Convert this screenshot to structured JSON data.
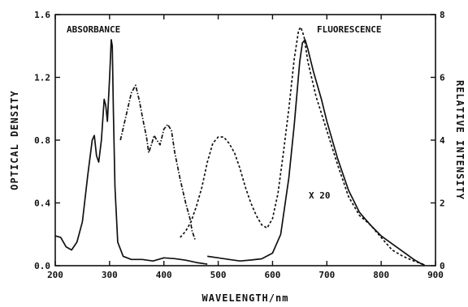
{
  "chart_data": {
    "type": "line",
    "xlabel": "WAVELENGTH/nm",
    "ylabel_left": "OPTICAL DENSITY",
    "ylabel_right": "RELATIVE INTENSITY",
    "xlim": [
      200,
      900
    ],
    "ylim_left": [
      0,
      1.6
    ],
    "ylim_right": [
      0,
      8
    ],
    "x_ticks": [
      "200",
      "300",
      "400",
      "500",
      "600",
      "700",
      "800",
      "900"
    ],
    "y_ticks_left": [
      "0.0",
      "0.4",
      "0.8",
      "1.2",
      "1.6"
    ],
    "y_ticks_right": [
      "0",
      "2",
      "4",
      "6",
      "8"
    ],
    "grid": false,
    "annotations": {
      "absorbance": "ABSORBANCE",
      "fluorescence": "FLUORESCENCE",
      "scale": "X 20"
    },
    "series": [
      {
        "axis": "left",
        "style": "solid",
        "points": [
          [
            200,
            0.19
          ],
          [
            210,
            0.18
          ],
          [
            220,
            0.12
          ],
          [
            230,
            0.1
          ],
          [
            240,
            0.15
          ],
          [
            250,
            0.28
          ],
          [
            260,
            0.58
          ],
          [
            268,
            0.8
          ],
          [
            272,
            0.83
          ],
          [
            276,
            0.7
          ],
          [
            280,
            0.66
          ],
          [
            285,
            0.8
          ],
          [
            290,
            1.06
          ],
          [
            293,
            1.02
          ],
          [
            296,
            0.92
          ],
          [
            300,
            1.2
          ],
          [
            303,
            1.44
          ],
          [
            305,
            1.4
          ],
          [
            307,
            1.0
          ],
          [
            310,
            0.5
          ],
          [
            315,
            0.15
          ],
          [
            325,
            0.06
          ],
          [
            340,
            0.04
          ],
          [
            360,
            0.04
          ],
          [
            380,
            0.03
          ],
          [
            400,
            0.05
          ],
          [
            420,
            0.045
          ],
          [
            440,
            0.035
          ],
          [
            460,
            0.02
          ],
          [
            480,
            0.01
          ]
        ]
      },
      {
        "axis": "left",
        "style": "dashdot",
        "points": [
          [
            320,
            0.8
          ],
          [
            330,
            0.95
          ],
          [
            340,
            1.1
          ],
          [
            348,
            1.15
          ],
          [
            355,
            1.05
          ],
          [
            362,
            0.92
          ],
          [
            368,
            0.82
          ],
          [
            372,
            0.72
          ],
          [
            377,
            0.77
          ],
          [
            382,
            0.83
          ],
          [
            387,
            0.8
          ],
          [
            393,
            0.77
          ],
          [
            400,
            0.87
          ],
          [
            407,
            0.9
          ],
          [
            414,
            0.86
          ],
          [
            420,
            0.72
          ],
          [
            430,
            0.55
          ],
          [
            440,
            0.4
          ],
          [
            448,
            0.3
          ],
          [
            452,
            0.22
          ],
          [
            458,
            0.16
          ]
        ]
      },
      {
        "axis": "right",
        "style": "dashed",
        "points": [
          [
            430,
            0.9
          ],
          [
            440,
            1.1
          ],
          [
            450,
            1.4
          ],
          [
            460,
            1.9
          ],
          [
            470,
            2.5
          ],
          [
            480,
            3.3
          ],
          [
            490,
            3.9
          ],
          [
            500,
            4.1
          ],
          [
            510,
            4.1
          ],
          [
            520,
            3.9
          ],
          [
            530,
            3.6
          ],
          [
            540,
            3.1
          ],
          [
            550,
            2.5
          ],
          [
            560,
            2.0
          ],
          [
            570,
            1.6
          ],
          [
            580,
            1.3
          ],
          [
            590,
            1.2
          ],
          [
            600,
            1.5
          ],
          [
            610,
            2.3
          ],
          [
            620,
            3.6
          ],
          [
            630,
            5.0
          ],
          [
            640,
            6.6
          ],
          [
            648,
            7.5
          ],
          [
            652,
            7.6
          ],
          [
            658,
            7.3
          ],
          [
            665,
            6.5
          ],
          [
            680,
            5.4
          ],
          [
            700,
            4.3
          ],
          [
            720,
            3.2
          ],
          [
            740,
            2.2
          ],
          [
            760,
            1.6
          ],
          [
            780,
            1.3
          ],
          [
            800,
            0.9
          ],
          [
            820,
            0.5
          ],
          [
            840,
            0.3
          ],
          [
            860,
            0.15
          ],
          [
            880,
            0.03
          ]
        ]
      },
      {
        "axis": "right",
        "style": "solid",
        "points": [
          [
            480,
            0.3
          ],
          [
            500,
            0.25
          ],
          [
            520,
            0.2
          ],
          [
            540,
            0.15
          ],
          [
            560,
            0.18
          ],
          [
            580,
            0.22
          ],
          [
            600,
            0.4
          ],
          [
            615,
            1.0
          ],
          [
            630,
            2.8
          ],
          [
            640,
            4.5
          ],
          [
            650,
            6.5
          ],
          [
            655,
            7.1
          ],
          [
            660,
            7.2
          ],
          [
            665,
            6.9
          ],
          [
            675,
            6.2
          ],
          [
            690,
            5.3
          ],
          [
            700,
            4.6
          ],
          [
            720,
            3.4
          ],
          [
            740,
            2.4
          ],
          [
            760,
            1.7
          ],
          [
            770,
            1.5
          ],
          [
            780,
            1.3
          ],
          [
            800,
            0.95
          ],
          [
            820,
            0.7
          ],
          [
            840,
            0.45
          ],
          [
            860,
            0.2
          ],
          [
            875,
            0.05
          ],
          [
            880,
            0.02
          ]
        ]
      }
    ]
  }
}
